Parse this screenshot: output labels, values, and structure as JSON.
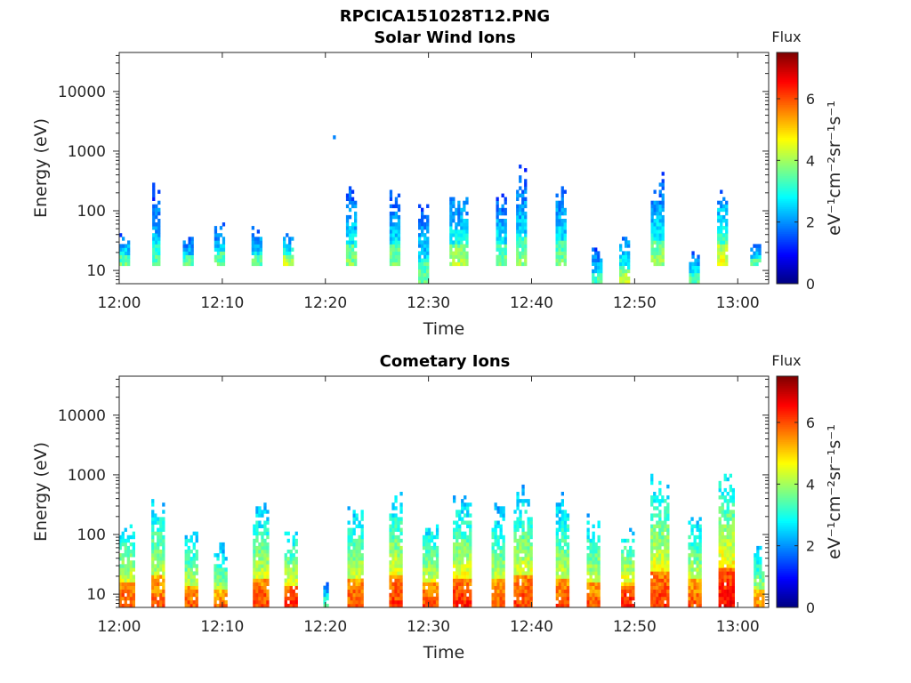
{
  "figure_title": "RPCICA151028T12.PNG",
  "colors": {
    "jet": [
      "#00007f",
      "#0000ff",
      "#0080ff",
      "#00ffff",
      "#80ff80",
      "#ffff00",
      "#ff8000",
      "#ff0000",
      "#7f0000"
    ]
  },
  "chart_data": [
    {
      "type": "heatmap",
      "title": "Solar Wind Ions",
      "xlabel": "Time",
      "ylabel": "Energy (eV)",
      "yscale": "log",
      "xlim": [
        "12:00",
        "13:03"
      ],
      "ylim": [
        6,
        45000
      ],
      "xticks": [
        "12:00",
        "12:10",
        "12:20",
        "12:30",
        "12:40",
        "12:50",
        "13:00"
      ],
      "yticks": [
        "10",
        "100",
        "1000",
        "10000"
      ],
      "colorbar": {
        "title": "Flux",
        "label": "eV⁻¹cm⁻²sr⁻¹s⁻¹",
        "ticks": [
          "0",
          "2",
          "4",
          "6"
        ],
        "range": [
          0,
          7.5
        ]
      },
      "grid": false,
      "bursts": [
        {
          "t": "12:00:30",
          "emin": 12,
          "emax": 40,
          "peak": 3.4,
          "max": 3.6,
          "dur": 1.0,
          "hi": 0
        },
        {
          "t": "12:03:30",
          "emin": 12,
          "emax": 300,
          "peak": 3.0,
          "max": 3.5,
          "dur": 0.6,
          "hi": 0.6
        },
        {
          "t": "12:06:40",
          "emin": 12,
          "emax": 40,
          "peak": 3.2,
          "max": 3.5,
          "dur": 1.0,
          "hi": 0
        },
        {
          "t": "12:09:40",
          "emin": 12,
          "emax": 70,
          "peak": 3.3,
          "max": 3.6,
          "dur": 0.9,
          "hi": 0.3
        },
        {
          "t": "12:13:20",
          "emin": 12,
          "emax": 55,
          "peak": 3.3,
          "max": 3.6,
          "dur": 1.0,
          "hi": 0.2
        },
        {
          "t": "12:16:20",
          "emin": 12,
          "emax": 45,
          "peak": 3.8,
          "max": 4.4,
          "dur": 0.9,
          "hi": 0
        },
        {
          "t": "12:20:50",
          "emin": 1600,
          "emax": 1800,
          "peak": 1.5,
          "max": 1.5,
          "dur": 0.2,
          "hi": 1
        },
        {
          "t": "12:22:30",
          "emin": 12,
          "emax": 280,
          "peak": 3.4,
          "max": 3.8,
          "dur": 1.0,
          "hi": 0.3
        },
        {
          "t": "12:26:40",
          "emin": 12,
          "emax": 230,
          "peak": 3.4,
          "max": 3.8,
          "dur": 0.9,
          "hi": 0.3
        },
        {
          "t": "12:29:30",
          "emin": 6,
          "emax": 160,
          "peak": 3.3,
          "max": 3.6,
          "dur": 1.0,
          "hi": 0.3
        },
        {
          "t": "12:32:50",
          "emin": 12,
          "emax": 330,
          "peak": 3.5,
          "max": 4.2,
          "dur": 1.6,
          "hi": 0.3
        },
        {
          "t": "12:37:00",
          "emin": 12,
          "emax": 280,
          "peak": 3.3,
          "max": 3.7,
          "dur": 0.9,
          "hi": 0.4
        },
        {
          "t": "12:39:00",
          "emin": 12,
          "emax": 600,
          "peak": 3.3,
          "max": 3.8,
          "dur": 1.0,
          "hi": 0.4
        },
        {
          "t": "12:42:50",
          "emin": 12,
          "emax": 450,
          "peak": 3.3,
          "max": 3.7,
          "dur": 1.0,
          "hi": 0.4
        },
        {
          "t": "12:46:20",
          "emin": 6,
          "emax": 30,
          "peak": 3.0,
          "max": 3.4,
          "dur": 1.0,
          "hi": 0
        },
        {
          "t": "12:49:00",
          "emin": 6,
          "emax": 45,
          "peak": 3.8,
          "max": 4.4,
          "dur": 1.0,
          "hi": 0
        },
        {
          "t": "12:52:10",
          "emin": 12,
          "emax": 400,
          "peak": 3.5,
          "max": 4.0,
          "dur": 1.2,
          "hi": 0.4
        },
        {
          "t": "12:55:40",
          "emin": 6,
          "emax": 25,
          "peak": 3.2,
          "max": 3.5,
          "dur": 0.8,
          "hi": 0
        },
        {
          "t": "12:58:30",
          "emin": 12,
          "emax": 300,
          "peak": 4.0,
          "max": 4.6,
          "dur": 1.0,
          "hi": 0.2
        },
        {
          "t": "13:01:40",
          "emin": 12,
          "emax": 30,
          "peak": 3.3,
          "max": 3.6,
          "dur": 0.9,
          "hi": 0
        }
      ]
    },
    {
      "type": "heatmap",
      "title": "Cometary Ions",
      "xlabel": "Time",
      "ylabel": "Energy (eV)",
      "yscale": "log",
      "xlim": [
        "12:00",
        "13:03"
      ],
      "ylim": [
        6,
        45000
      ],
      "xticks": [
        "12:00",
        "12:10",
        "12:20",
        "12:30",
        "12:40",
        "12:50",
        "13:00"
      ],
      "yticks": [
        "10",
        "100",
        "1000",
        "10000"
      ],
      "colorbar": {
        "title": "Flux",
        "label": "eV⁻¹cm⁻²sr⁻¹s⁻¹",
        "ticks": [
          "0",
          "2",
          "4",
          "6"
        ],
        "range": [
          0,
          7.5
        ]
      },
      "grid": false,
      "bursts": [
        {
          "t": "12:00:40",
          "emin": 6,
          "emax": 200,
          "peak": 5.5,
          "max": 6.0,
          "dur": 1.4,
          "hi": 0.4
        },
        {
          "t": "12:03:40",
          "emin": 6,
          "emax": 700,
          "peak": 5.2,
          "max": 5.9,
          "dur": 1.1,
          "hi": 0.7
        },
        {
          "t": "12:07:00",
          "emin": 6,
          "emax": 160,
          "peak": 5.2,
          "max": 5.9,
          "dur": 1.3,
          "hi": 0.4
        },
        {
          "t": "12:09:50",
          "emin": 6,
          "emax": 80,
          "peak": 5.0,
          "max": 5.8,
          "dur": 1.3,
          "hi": 0.3
        },
        {
          "t": "12:13:40",
          "emin": 6,
          "emax": 400,
          "peak": 5.4,
          "max": 6.1,
          "dur": 1.4,
          "hi": 0.6
        },
        {
          "t": "12:16:40",
          "emin": 6,
          "emax": 150,
          "peak": 5.6,
          "max": 6.3,
          "dur": 1.3,
          "hi": 0.3
        },
        {
          "t": "12:20:00",
          "emin": 6,
          "emax": 20,
          "peak": 3.3,
          "max": 3.6,
          "dur": 0.4,
          "hi": 0
        },
        {
          "t": "12:22:50",
          "emin": 6,
          "emax": 400,
          "peak": 5.4,
          "max": 6.0,
          "dur": 1.4,
          "hi": 0.6
        },
        {
          "t": "12:26:50",
          "emin": 6,
          "emax": 600,
          "peak": 5.6,
          "max": 6.2,
          "dur": 1.3,
          "hi": 0.7
        },
        {
          "t": "12:30:10",
          "emin": 6,
          "emax": 220,
          "peak": 5.4,
          "max": 6.1,
          "dur": 1.5,
          "hi": 0.5
        },
        {
          "t": "12:33:10",
          "emin": 6,
          "emax": 500,
          "peak": 5.6,
          "max": 6.3,
          "dur": 1.6,
          "hi": 0.6
        },
        {
          "t": "12:36:40",
          "emin": 6,
          "emax": 400,
          "peak": 5.2,
          "max": 5.9,
          "dur": 1.1,
          "hi": 0.6
        },
        {
          "t": "12:39:10",
          "emin": 6,
          "emax": 700,
          "peak": 5.5,
          "max": 6.1,
          "dur": 1.8,
          "hi": 0.6
        },
        {
          "t": "12:43:00",
          "emin": 6,
          "emax": 500,
          "peak": 5.3,
          "max": 6.0,
          "dur": 1.3,
          "hi": 0.6
        },
        {
          "t": "12:46:00",
          "emin": 6,
          "emax": 280,
          "peak": 5.3,
          "max": 6.0,
          "dur": 1.3,
          "hi": 0.5
        },
        {
          "t": "12:49:20",
          "emin": 6,
          "emax": 150,
          "peak": 5.8,
          "max": 6.5,
          "dur": 1.3,
          "hi": 0.4
        },
        {
          "t": "12:52:20",
          "emin": 6,
          "emax": 1400,
          "peak": 5.6,
          "max": 6.2,
          "dur": 1.6,
          "hi": 0.6
        },
        {
          "t": "12:55:50",
          "emin": 6,
          "emax": 300,
          "peak": 5.3,
          "max": 6.0,
          "dur": 1.3,
          "hi": 0.4
        },
        {
          "t": "12:58:50",
          "emin": 6,
          "emax": 1600,
          "peak": 5.9,
          "max": 6.6,
          "dur": 1.4,
          "hi": 0.6
        },
        {
          "t": "13:02:00",
          "emin": 6,
          "emax": 70,
          "peak": 5.0,
          "max": 5.6,
          "dur": 0.9,
          "hi": 0.3
        }
      ]
    }
  ]
}
